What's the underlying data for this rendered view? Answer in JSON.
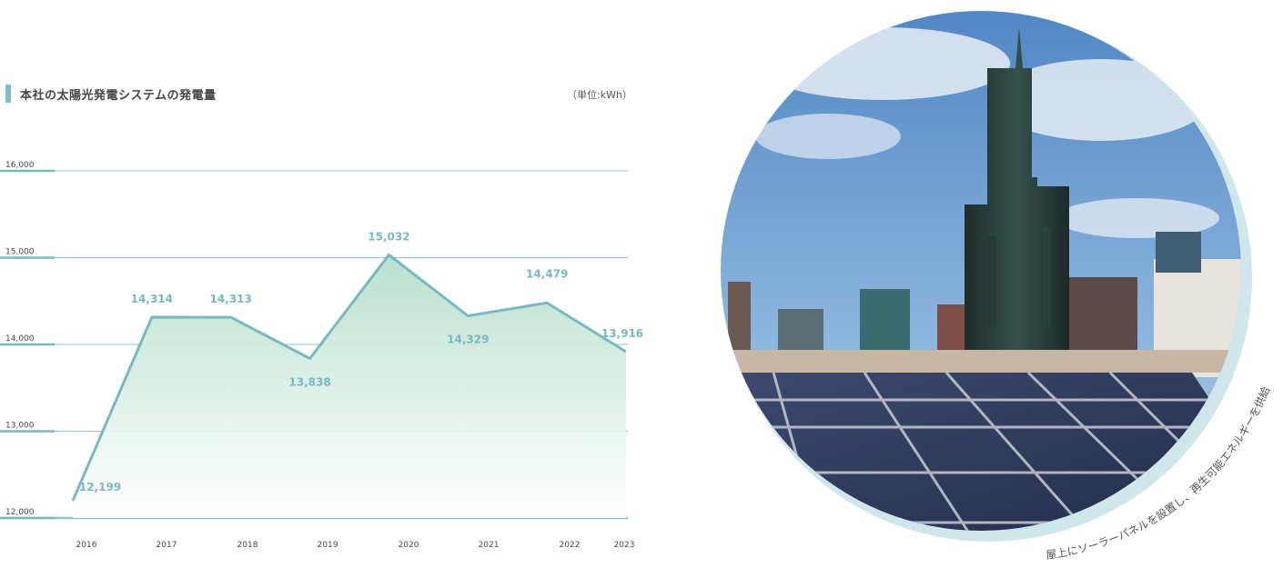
{
  "chart": {
    "title": "本社の太陽光発電システムの発電量",
    "unit": "（単位:kWh）"
  },
  "chart_data": {
    "type": "area",
    "title": "本社の太陽光発電システムの発電量",
    "unit": "kWh",
    "x": [
      "2016",
      "2017",
      "2018",
      "2019",
      "2020",
      "2021",
      "2022",
      "2023"
    ],
    "values": [
      12199,
      14314,
      14313,
      13838,
      15032,
      14329,
      14479,
      13916
    ],
    "value_labels": [
      "12,199",
      "14,314",
      "14,313",
      "13,838",
      "15,032",
      "14,329",
      "14,479",
      "13,916"
    ],
    "yticks": [
      "12,000",
      "13,000",
      "14,000",
      "15,000",
      "16,000"
    ],
    "ylim": [
      12000,
      16000
    ],
    "grid": true,
    "colors": {
      "line": "#7ab8c1",
      "fill_top": "#bfe3d3",
      "grid": "#8cc4c9"
    }
  },
  "photo": {
    "description_icon": "rooftop-solar-panels-photo",
    "caption": "屋上にソーラーパネルを設置し、再生可能エネルギーを供給"
  }
}
